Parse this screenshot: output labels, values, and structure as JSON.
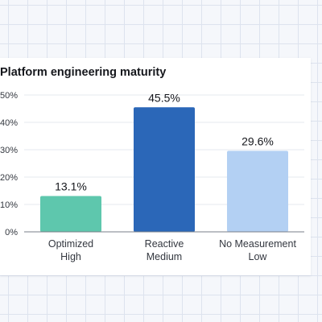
{
  "chart_data": {
    "type": "bar",
    "title": "Platform engineering maturity",
    "categories": [
      [
        "Optimized",
        "High"
      ],
      [
        "Reactive",
        "Medium"
      ],
      [
        "No Measurement",
        "Low"
      ]
    ],
    "values": [
      13.1,
      45.5,
      29.6
    ],
    "value_labels": [
      "13.1%",
      "45.5%",
      "29.6%"
    ],
    "ylim": [
      0,
      50
    ],
    "yticks": [
      "0%",
      "10%",
      "20%",
      "30%",
      "40%",
      "50%"
    ],
    "grid": true,
    "colors": [
      "#5ec7ad",
      "#2b67b8",
      "#b3d0f3"
    ],
    "axis_color": "#7a7f88",
    "grid_color": "#e6e9ef"
  }
}
